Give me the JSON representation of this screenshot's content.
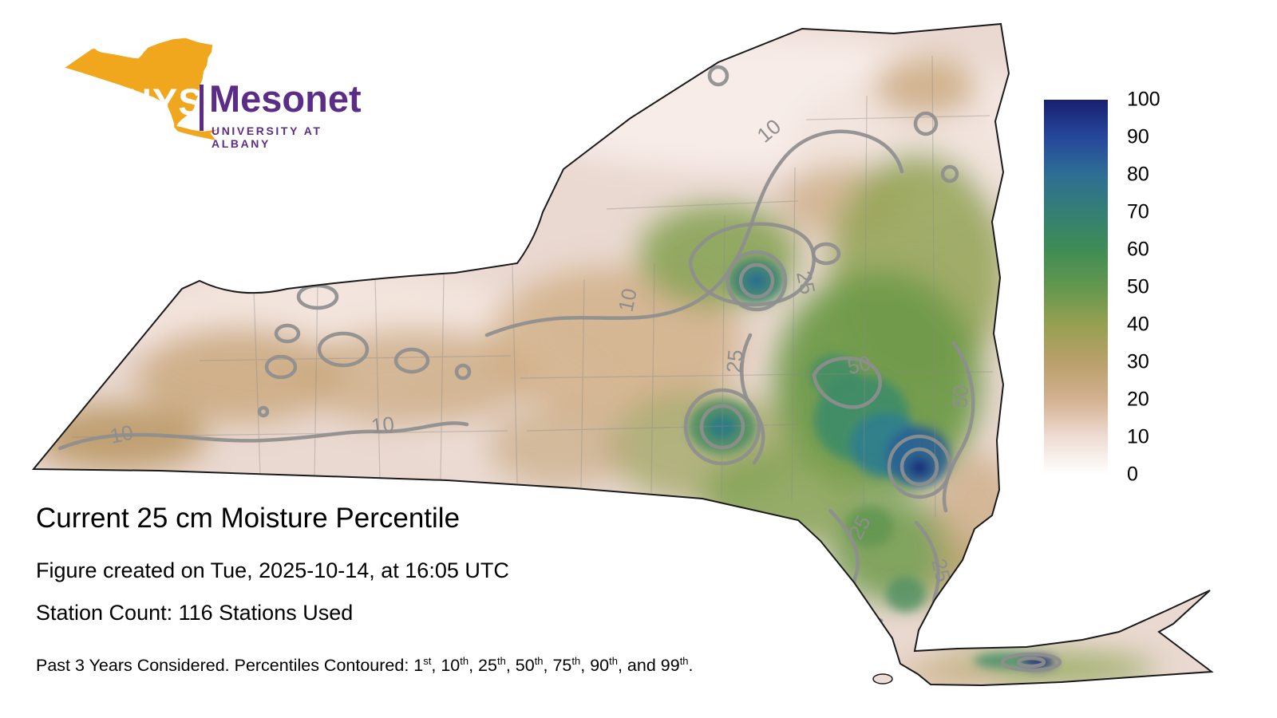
{
  "logo": {
    "nys": "NYS",
    "mesonet": "Mesonet",
    "university": "UNIVERSITY AT ALBANY",
    "gold": "#F0A71E",
    "purple": "#5C2D87"
  },
  "title": "Current 25 cm Moisture Percentile",
  "created_line": "Figure created on Tue, 2025-10-14, at 16:05 UTC",
  "station_line": "Station Count: 116 Stations Used",
  "footer": {
    "segments": [
      {
        "t": "Past 3 Years Considered. Percentiles Contoured: 1"
      },
      {
        "sup": "st"
      },
      {
        "t": ", 10"
      },
      {
        "sup": "th"
      },
      {
        "t": ", 25"
      },
      {
        "sup": "th"
      },
      {
        "t": ", 50"
      },
      {
        "sup": "th"
      },
      {
        "t": ", 75"
      },
      {
        "sup": "th"
      },
      {
        "t": ", 90"
      },
      {
        "sup": "th"
      },
      {
        "t": ", and 99"
      },
      {
        "sup": "th"
      },
      {
        "t": "."
      }
    ]
  },
  "colorbar": {
    "ticks": [
      "100",
      "90",
      "80",
      "70",
      "60",
      "50",
      "40",
      "30",
      "20",
      "10",
      "0"
    ],
    "stops": [
      {
        "value": 0,
        "color": "#ffffff"
      },
      {
        "value": 10,
        "color": "#efdcd4"
      },
      {
        "value": 20,
        "color": "#d3b191"
      },
      {
        "value": 30,
        "color": "#b9a06b"
      },
      {
        "value": 40,
        "color": "#96a052"
      },
      {
        "value": 50,
        "color": "#64974f"
      },
      {
        "value": 60,
        "color": "#3f8c55"
      },
      {
        "value": 70,
        "color": "#347f74"
      },
      {
        "value": 80,
        "color": "#2e6e94"
      },
      {
        "value": 90,
        "color": "#26479b"
      },
      {
        "value": 100,
        "color": "#191f70"
      }
    ]
  },
  "map": {
    "contour_color": "#8e8e8e",
    "outline_color": "#1a1a1a",
    "contour_labels": [
      {
        "value": "10"
      },
      {
        "value": "10"
      },
      {
        "value": "10"
      },
      {
        "value": "10"
      },
      {
        "value": "25"
      },
      {
        "value": "25"
      },
      {
        "value": "50"
      },
      {
        "value": "50"
      },
      {
        "value": "25"
      },
      {
        "value": "25"
      }
    ]
  },
  "chart_data": {
    "type": "heatmap",
    "title": "Current 25 cm Moisture Percentile",
    "region": "New York State",
    "variable": "Soil moisture percentile at 25 cm depth",
    "colorbar": {
      "min": 0,
      "max": 100,
      "ticks": [
        0,
        10,
        20,
        30,
        40,
        50,
        60,
        70,
        80,
        90,
        100
      ]
    },
    "contour_levels_labeled": [
      10,
      25,
      50
    ],
    "percentiles_contoured": [
      "1st",
      "10th",
      "25th",
      "50th",
      "75th",
      "90th",
      "99th"
    ],
    "station_count": 116,
    "years_considered": 3,
    "created": "Tue, 2025-10-14, at 16:05 UTC",
    "legend_position": "right",
    "summary": "Dry (low percentile, pink/tan) across western and northern NY; wetter (green/teal/blue, 50-100th percentile) in east-central NY, Catskills/Capital region and parts of Long Island; isolated 100th-percentile navy maxima southeast of Albany and on Long Island."
  }
}
